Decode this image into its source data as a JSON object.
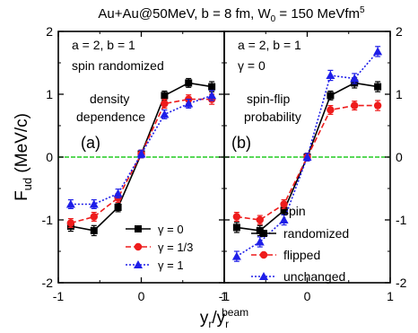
{
  "figure": {
    "title": "Au+Au@50MeV, b = 8 fm, W",
    "title_sub": "0",
    "title_tail": " = 150 MeVfm",
    "title_sup": "5",
    "ylabel_main": "F",
    "ylabel_sub": "ud",
    "ylabel_unit": " (MeV/c)",
    "xlabel_main": "y",
    "xlabel_sub1": "r",
    "xlabel_mid": "/y",
    "xlabel_sub2": "r",
    "xlabel_sup": "beam"
  },
  "chart_data": [
    {
      "type": "line",
      "panel_label": "(a)",
      "annotations": [
        "a = 2, b = 1",
        "spin randomized",
        "density",
        "dependence"
      ],
      "xlim": [
        -1,
        1
      ],
      "ylim": [
        -2,
        2
      ],
      "xticks": [
        "-1",
        "0",
        "1"
      ],
      "yticks": [
        "-2",
        "-1",
        "0",
        "1",
        "2"
      ],
      "reference_line": {
        "y": 0,
        "color": "#22cc22",
        "style": "dashed"
      },
      "x": [
        -0.85,
        -0.57,
        -0.28,
        0.0,
        0.28,
        0.57,
        0.85
      ],
      "legend_placement": "lower-right",
      "series": [
        {
          "name": "γ = 0",
          "color": "#000000",
          "dash": "solid",
          "marker": "square",
          "values": [
            -1.1,
            -1.17,
            -0.8,
            0.05,
            0.98,
            1.18,
            1.12
          ],
          "errors": [
            0.08,
            0.08,
            0.07,
            0.06,
            0.07,
            0.07,
            0.08
          ]
        },
        {
          "name": "γ = 1/3",
          "color": "#ee1c1c",
          "dash": "dashed",
          "marker": "circle",
          "values": [
            -1.05,
            -0.95,
            -0.65,
            0.05,
            0.85,
            0.92,
            0.92
          ],
          "errors": [
            0.07,
            0.07,
            0.07,
            0.06,
            0.07,
            0.07,
            0.08
          ]
        },
        {
          "name": "γ = 1",
          "color": "#1e1ee8",
          "dash": "dotted",
          "marker": "triangle",
          "values": [
            -0.75,
            -0.75,
            -0.58,
            0.05,
            0.68,
            0.85,
            0.98
          ],
          "errors": [
            0.07,
            0.07,
            0.07,
            0.06,
            0.07,
            0.07,
            0.08
          ]
        }
      ]
    },
    {
      "type": "line",
      "panel_label": "(b)",
      "annotations": [
        "a = 2, b = 1",
        "γ = 0",
        "spin-flip",
        "probability"
      ],
      "xlim": [
        -1,
        1
      ],
      "ylim": [
        -2,
        2
      ],
      "xticks": [
        "-1",
        "0",
        "1"
      ],
      "yticks": [
        "-2",
        "-1",
        "0",
        "1",
        "2"
      ],
      "reference_line": {
        "y": 0,
        "color": "#22cc22",
        "style": "dashed"
      },
      "x": [
        -0.85,
        -0.57,
        -0.28,
        0.0,
        0.28,
        0.57,
        0.85
      ],
      "legend_placement": "lower-right",
      "series": [
        {
          "name": "spin\nrandomized",
          "label_line1": "spin",
          "label_line2": "randomized",
          "color": "#000000",
          "dash": "solid",
          "marker": "square",
          "values": [
            -1.12,
            -1.17,
            -0.85,
            0.0,
            0.98,
            1.18,
            1.12
          ],
          "errors": [
            0.08,
            0.08,
            0.07,
            0.06,
            0.07,
            0.08,
            0.08
          ]
        },
        {
          "name": "flipped",
          "color": "#ee1c1c",
          "dash": "dashed",
          "marker": "circle",
          "values": [
            -0.95,
            -1.0,
            -0.75,
            0.0,
            0.75,
            0.82,
            0.82
          ],
          "errors": [
            0.07,
            0.07,
            0.07,
            0.06,
            0.07,
            0.07,
            0.08
          ]
        },
        {
          "name": "unchanged",
          "color": "#1e1ee8",
          "dash": "dotted",
          "marker": "triangle",
          "values": [
            -1.58,
            -1.35,
            -1.0,
            0.0,
            1.3,
            1.25,
            1.68
          ],
          "errors": [
            0.08,
            0.08,
            0.08,
            0.06,
            0.08,
            0.08,
            0.08
          ]
        }
      ]
    }
  ]
}
